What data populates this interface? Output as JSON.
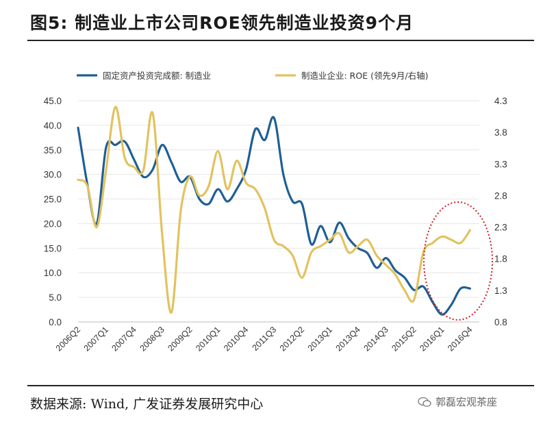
{
  "title": "图5:  制造业上市公司ROE领先制造业投资9个月",
  "source": "数据来源: Wind, 广发证券发展研究中心",
  "watermark": "郭磊宏观茶座",
  "colors": {
    "investment": "#1f5f95",
    "roe": "#e2c25f",
    "highlight": "#d4161c"
  },
  "chart_data": {
    "type": "line",
    "title": "制造业上市公司ROE领先制造业投资9个月",
    "legend_position": "top",
    "left_axis": {
      "ylim": [
        0,
        45
      ],
      "ticks": [
        "0.0",
        "5.0",
        "10.0",
        "15.0",
        "20.0",
        "25.0",
        "30.0",
        "35.0",
        "40.0",
        "45.0"
      ]
    },
    "right_axis": {
      "ylim": [
        0.8,
        4.3
      ],
      "ticks": [
        "0.8",
        "1.3",
        "1.8",
        "2.3",
        "2.8",
        "3.3",
        "3.8",
        "4.3"
      ]
    },
    "x_range": [
      0,
      43
    ],
    "x_tick_labels": [
      "2006Q2",
      "2007Q1",
      "2007Q4",
      "2008Q3",
      "2009Q2",
      "2010Q1",
      "2010Q4",
      "2011Q3",
      "2012Q2",
      "2013Q1",
      "2013Q4",
      "2014Q3",
      "2015Q2",
      "2016Q1",
      "2016Q4"
    ],
    "series": [
      {
        "name": "固定资产投资完成额: 制造业",
        "axis": "left",
        "x": [
          0,
          1,
          2,
          3,
          4,
          5,
          6,
          7,
          8,
          9,
          10,
          11,
          12,
          13,
          14,
          15,
          16,
          17,
          18,
          19,
          20,
          21,
          22,
          23,
          24,
          25,
          26,
          27,
          28,
          29,
          30,
          31,
          32,
          33,
          34,
          35,
          36,
          37,
          38,
          39,
          40,
          41,
          42
        ],
        "values": [
          39.5,
          28,
          20,
          35.5,
          36,
          36.7,
          33,
          29.5,
          31,
          36,
          32.5,
          28.5,
          29.5,
          25,
          24,
          27,
          24.5,
          27,
          31,
          39.2,
          37,
          41.5,
          30,
          24.5,
          24,
          15.8,
          19.5,
          16.2,
          20.2,
          17,
          15,
          14,
          11,
          13,
          10.5,
          9,
          6.5,
          7.2,
          4,
          1.5,
          3.5,
          6.8,
          6.8
        ]
      },
      {
        "name": "制造业企业: ROE (领先9月/右轴)",
        "axis": "right",
        "x": [
          0,
          1,
          2,
          3,
          4,
          5,
          6,
          7,
          8,
          9,
          10,
          11,
          12,
          13,
          14,
          15,
          16,
          17,
          18,
          19,
          20,
          21,
          22,
          23,
          24,
          25,
          26,
          27,
          28,
          29,
          30,
          31,
          32,
          33,
          34,
          35,
          36,
          37,
          38,
          39,
          40,
          41,
          42
        ],
        "values": [
          3.05,
          2.95,
          2.3,
          3.2,
          4.2,
          3.4,
          3.25,
          3.2,
          4.1,
          2.2,
          0.95,
          2.55,
          3.1,
          2.8,
          2.95,
          3.5,
          2.9,
          3.35,
          3.0,
          2.9,
          2.6,
          2.1,
          2.0,
          1.85,
          1.5,
          1.9,
          2.0,
          2.1,
          2.2,
          1.9,
          2.0,
          2.1,
          1.85,
          1.7,
          1.55,
          1.3,
          1.15,
          1.9,
          2.05,
          2.15,
          2.1,
          2.05,
          2.25
        ]
      }
    ]
  }
}
